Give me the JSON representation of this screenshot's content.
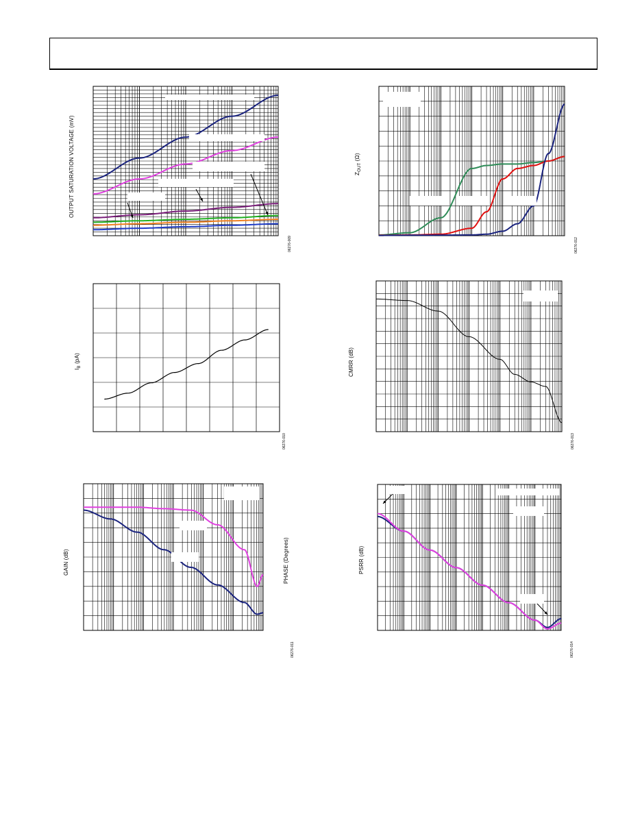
{
  "figures": {
    "sat": {
      "ylabel": "OUTPUT SATURATION VOLTAGE (mV)",
      "code": "06276-009"
    },
    "zout": {
      "ylabel": "Z",
      "ylabel_sub": "OUT",
      "ylabel_tail": " (Ω)",
      "code": "06276-012"
    },
    "ib": {
      "ylabel": "I",
      "ylabel_sub": "B",
      "ylabel_tail": " (pA)",
      "code": "06276-010"
    },
    "cmrr": {
      "ylabel": "CMRR (dB)",
      "code": "06276-013"
    },
    "gain": {
      "ylabel": "GAIN (dB)",
      "ylabel_right": "PHASE (Degrees)",
      "code": "06276-011"
    },
    "psrr": {
      "ylabel": "PSRR (dB)",
      "code": "06276-014"
    }
  },
  "colors": {
    "navy": "#1a237e",
    "magenta": "#e040e0",
    "purple": "#7b1f7b",
    "green": "#22b022",
    "orange": "#f08020",
    "blue": "#1e3cc8",
    "teal": "#2e8b57",
    "red": "#e01010",
    "black": "#000000"
  },
  "chart_data": [
    {
      "id": "sat",
      "type": "line",
      "xscale": "log",
      "x": [
        0.0001,
        0.001,
        0.01,
        0.1,
        1
      ],
      "series": [
        {
          "color": "navy",
          "values": [
            0.38,
            0.52,
            0.66,
            0.8,
            0.94
          ]
        },
        {
          "color": "magenta",
          "values": [
            0.28,
            0.38,
            0.48,
            0.57,
            0.66
          ]
        },
        {
          "color": "purple",
          "values": [
            0.12,
            0.14,
            0.165,
            0.19,
            0.215
          ]
        },
        {
          "color": "green",
          "values": [
            0.09,
            0.1,
            0.11,
            0.12,
            0.135
          ]
        },
        {
          "color": "orange",
          "values": [
            0.07,
            0.08,
            0.09,
            0.1,
            0.11
          ]
        },
        {
          "color": "blue",
          "values": [
            0.04,
            0.05,
            0.06,
            0.07,
            0.08
          ]
        }
      ]
    },
    {
      "id": "zout",
      "type": "line",
      "xscale": "log",
      "x": [
        1,
        10,
        100,
        1000,
        3000,
        10000,
        30000,
        100000,
        300000,
        1000000
      ],
      "series": [
        {
          "color": "teal",
          "values": [
            0.005,
            0.02,
            0.12,
            0.45,
            0.47,
            0.48,
            0.48,
            0.49,
            0.5,
            0.53
          ]
        },
        {
          "color": "red",
          "values": [
            0.003,
            0.005,
            0.01,
            0.05,
            0.16,
            0.38,
            0.45,
            0.47,
            0.5,
            0.53
          ]
        },
        {
          "color": "navy",
          "values": [
            0.002,
            0.003,
            0.004,
            0.005,
            0.01,
            0.03,
            0.08,
            0.2,
            0.55,
            0.88
          ]
        }
      ]
    },
    {
      "id": "ib",
      "type": "line",
      "x": [
        0,
        10,
        20,
        30,
        40,
        50,
        60,
        70
      ],
      "series": [
        {
          "color": "black",
          "values": [
            0.22,
            0.26,
            0.33,
            0.4,
            0.46,
            0.55,
            0.62,
            0.69
          ]
        }
      ]
    },
    {
      "id": "cmrr",
      "type": "line",
      "xscale": "log",
      "x": [
        1,
        10,
        100,
        1000,
        10000,
        30000,
        100000,
        300000,
        1000000
      ],
      "series": [
        {
          "color": "black",
          "values": [
            0.88,
            0.87,
            0.8,
            0.63,
            0.48,
            0.38,
            0.33,
            0.3,
            0.06
          ]
        }
      ]
    },
    {
      "id": "gain",
      "type": "line",
      "xscale": "log",
      "x": [
        1,
        10,
        100,
        1000,
        10000,
        100000,
        1000000,
        3000000,
        5000000
      ],
      "series": [
        {
          "color": "navy",
          "values": [
            0.82,
            0.76,
            0.67,
            0.55,
            0.43,
            0.31,
            0.19,
            0.11,
            0.12
          ]
        },
        {
          "color": "magenta",
          "values": [
            0.84,
            0.84,
            0.84,
            0.83,
            0.82,
            0.72,
            0.55,
            0.3,
            0.38
          ]
        }
      ]
    },
    {
      "id": "psrr",
      "type": "line",
      "xscale": "log",
      "x": [
        1,
        10,
        100,
        1000,
        10000,
        100000,
        1000000,
        3000000,
        10000000
      ],
      "series": [
        {
          "color": "navy",
          "values": [
            0.78,
            0.68,
            0.55,
            0.43,
            0.31,
            0.19,
            0.07,
            0.02,
            0.08
          ]
        },
        {
          "color": "magenta",
          "values": [
            0.8,
            0.68,
            0.55,
            0.43,
            0.31,
            0.19,
            0.07,
            0.01,
            0.05
          ]
        }
      ]
    }
  ]
}
